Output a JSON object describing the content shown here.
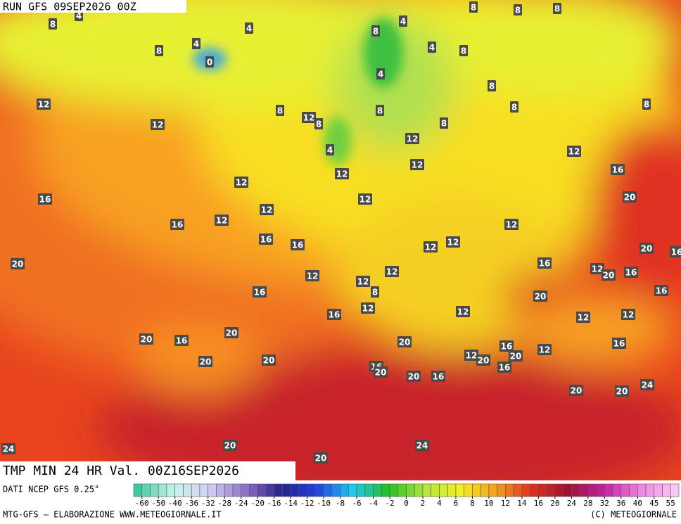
{
  "header": {
    "run": "RUN GFS 09SEP2026 00Z"
  },
  "title": "TMP MIN 24 HR Val. 00Z16SEP2026",
  "source": "DATI NCEP GFS 0.25°",
  "credit": "MTG-GFS — ELABORAZIONE WWW.METEOGIORNALE.IT",
  "copyright": "(C) METEOGIORNALE",
  "colorbar": {
    "ticks": [
      -60,
      -50,
      -40,
      -36,
      -32,
      -28,
      -24,
      -20,
      -16,
      -14,
      -12,
      -10,
      -8,
      -6,
      -4,
      -2,
      0,
      2,
      4,
      6,
      8,
      10,
      12,
      14,
      16,
      20,
      24,
      28,
      32,
      36,
      40,
      45,
      55
    ],
    "colors": [
      "#40c8a0",
      "#c8f4ec",
      "#d0d0f4",
      "#9070c8",
      "#28208a",
      "#2040e0",
      "#20c8f0",
      "#20c020",
      "#b0e840",
      "#f4f020",
      "#f4a020",
      "#e03020",
      "#a01030",
      "#c020a0",
      "#f080e0",
      "#f8c8f4"
    ]
  },
  "map": {
    "labels": [
      8,
      8,
      8,
      4,
      8,
      4,
      8,
      4,
      8,
      4,
      0,
      4,
      8,
      4,
      8,
      12,
      8,
      12,
      8,
      8,
      8,
      8,
      12,
      8,
      12,
      4,
      12,
      12,
      12,
      16,
      12,
      16,
      20,
      12,
      12,
      12,
      16,
      12,
      16,
      16,
      12,
      12,
      20,
      16,
      20,
      16,
      12,
      20,
      16,
      12,
      12,
      12,
      8,
      16,
      20,
      16,
      12,
      16,
      12,
      12,
      12,
      20,
      20,
      16,
      20,
      16,
      16,
      12,
      12,
      20,
      20,
      20,
      20,
      16,
      16,
      20,
      20,
      16,
      24,
      20,
      20,
      24,
      20,
      24,
      20
    ]
  }
}
